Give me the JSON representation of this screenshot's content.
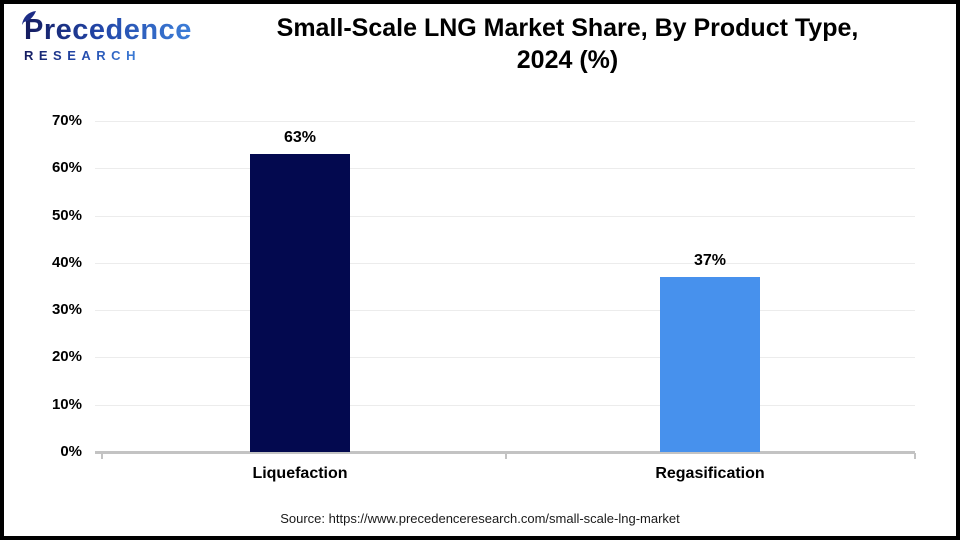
{
  "header": {
    "logo": {
      "name": "Precedence",
      "subname": "RESEARCH"
    },
    "title_line1": "Small-Scale LNG Market Share, By Product Type,",
    "title_line2": "2024 (%)"
  },
  "chart_data": {
    "type": "bar",
    "title": "Small-Scale LNG Market Share, By Product Type, 2024 (%)",
    "categories": [
      "Liquefaction",
      "Regasification"
    ],
    "values": [
      63,
      37
    ],
    "value_labels": [
      "63%",
      "37%"
    ],
    "bar_colors": [
      "#03094f",
      "#4791ed"
    ],
    "xlabel": "",
    "ylabel": "",
    "ylim": [
      0,
      70
    ],
    "yticks": [
      0,
      10,
      20,
      30,
      40,
      50,
      60,
      70
    ],
    "ytick_labels": [
      "0%",
      "10%",
      "20%",
      "30%",
      "40%",
      "50%",
      "60%",
      "70%"
    ],
    "grid": "horizontal",
    "legend": "none"
  },
  "footer": {
    "source": "Source: https://www.precedenceresearch.com/small-scale-lng-market"
  }
}
